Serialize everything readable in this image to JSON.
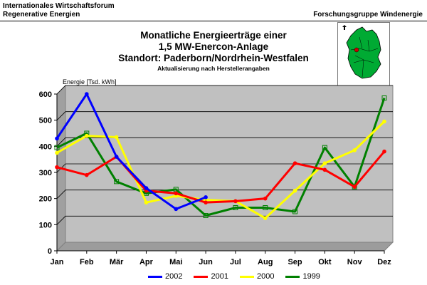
{
  "header": {
    "org_line1": "Internationales Wirtschaftsforum",
    "org_line2": "Regenerative Energien",
    "group": "Forschungsgruppe Windenergie"
  },
  "chart_data": {
    "type": "line",
    "title_lines": [
      "Monatliche Energieerträge einer",
      "1,5 MW-Enercon-Anlage",
      "Standort: Paderborn/Nordrhein-Westfalen"
    ],
    "subtitle": "Aktualisierung nach Herstellerangaben",
    "ylabel": "Energie [Tsd. kWh]",
    "xlabel": "",
    "ylim": [
      0,
      600
    ],
    "yticks": [
      0,
      100,
      200,
      300,
      400,
      500,
      600
    ],
    "grid": true,
    "legend_position": "bottom",
    "categories": [
      "Jan",
      "Feb",
      "Mär",
      "Apr",
      "Mai",
      "Jun",
      "Jul",
      "Aug",
      "Sep",
      "Okt",
      "Nov",
      "Dez"
    ],
    "series": [
      {
        "name": "2002",
        "color": "#0000ff",
        "values": [
          430,
          600,
          360,
          240,
          160,
          205,
          null,
          null,
          null,
          null,
          null,
          null
        ]
      },
      {
        "name": "2001",
        "color": "#ff0000",
        "values": [
          320,
          290,
          360,
          230,
          220,
          185,
          190,
          200,
          335,
          310,
          245,
          380
        ]
      },
      {
        "name": "2000",
        "color": "#ffff00",
        "values": [
          375,
          440,
          435,
          185,
          210,
          195,
          190,
          125,
          230,
          335,
          385,
          495
        ]
      },
      {
        "name": "1999",
        "color": "#008000",
        "values": [
          395,
          450,
          265,
          220,
          235,
          135,
          165,
          165,
          150,
          395,
          245,
          585
        ]
      }
    ]
  },
  "map": {
    "icon": "germany-map-icon"
  }
}
